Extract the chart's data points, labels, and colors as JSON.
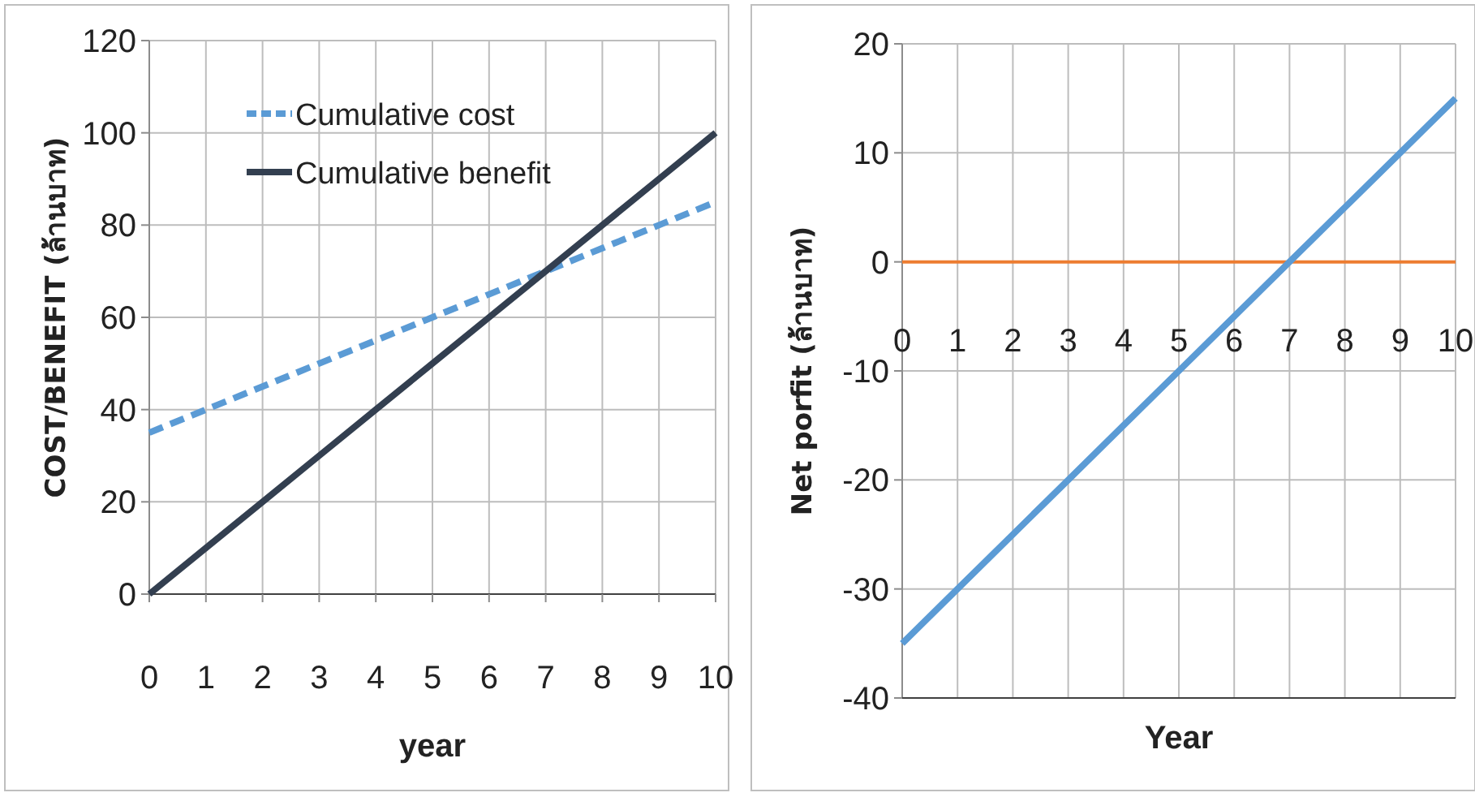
{
  "chart_data": [
    {
      "type": "line",
      "xlabel": "year",
      "ylabel": "COST/BENEFIT (ล้านบาท)",
      "x": [
        0,
        1,
        2,
        3,
        4,
        5,
        6,
        7,
        8,
        9,
        10
      ],
      "xlim": [
        0,
        10
      ],
      "xticks": [
        0,
        1,
        2,
        3,
        4,
        5,
        6,
        7,
        8,
        9,
        10
      ],
      "ylim": [
        0,
        120
      ],
      "yticks": [
        0,
        20,
        40,
        60,
        80,
        100,
        120
      ],
      "grid": true,
      "legend": "top",
      "series": [
        {
          "name": "Cumulative cost",
          "color": "#5b9bd5",
          "line_style": "dashed",
          "values": [
            35,
            40,
            45,
            50,
            55,
            60,
            65,
            70,
            75,
            80,
            85
          ]
        },
        {
          "name": "Cumulative benefit",
          "color": "#333f50",
          "values": [
            0,
            10,
            20,
            30,
            40,
            50,
            60,
            70,
            80,
            90,
            100
          ]
        }
      ]
    },
    {
      "type": "line",
      "xlabel": "Year",
      "ylabel": "Net porfit (ล้านบาท)",
      "x": [
        0,
        1,
        2,
        3,
        4,
        5,
        6,
        7,
        8,
        9,
        10
      ],
      "xlim": [
        0,
        10
      ],
      "xticks": [
        0,
        1,
        2,
        3,
        4,
        5,
        6,
        7,
        8,
        9,
        10
      ],
      "ylim": [
        -40,
        20
      ],
      "yticks": [
        -40,
        -30,
        -20,
        -10,
        0,
        10,
        20
      ],
      "grid": true,
      "series": [
        {
          "color": "#5b9bd5",
          "values": [
            -35,
            -30,
            -25,
            -20,
            -15,
            -10,
            -5,
            0,
            5,
            10,
            15
          ]
        }
      ]
    }
  ]
}
